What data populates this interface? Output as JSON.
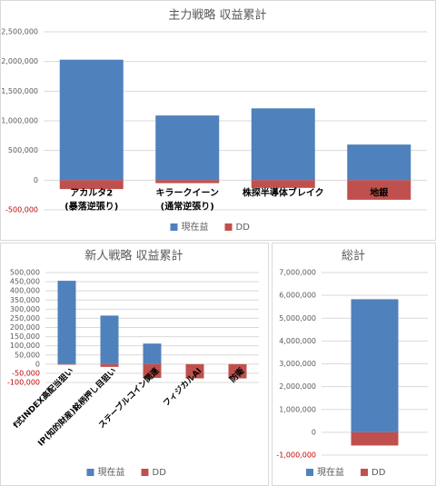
{
  "chart_data": [
    {
      "type": "bar",
      "title": "主力戦略 収益累計",
      "categories": [
        [
          "アカルタ2",
          "(暴落逆張り)"
        ],
        [
          "キラークイーン",
          "(通常逆張り)"
        ],
        [
          "株探半導体ブレイク"
        ],
        [
          "地銀"
        ]
      ],
      "series": [
        {
          "name": "現在益",
          "color": "#4f81bd",
          "values": [
            2030000,
            1090000,
            1210000,
            600000
          ]
        },
        {
          "name": "DD",
          "color": "#c0504d",
          "values": [
            -150000,
            -50000,
            -130000,
            -330000
          ]
        }
      ],
      "ylim": [
        -500000,
        2500000
      ],
      "yticks": [
        {
          "value": -500000,
          "label": "-500,000"
        },
        0,
        {
          "value": 500000,
          "label": "500,000"
        },
        {
          "value": 1000000,
          "label": "1,000,000"
        },
        {
          "value": 1500000,
          "label": "1,500,000"
        },
        {
          "value": 2000000,
          "label": "2,000,000"
        },
        {
          "value": 2500000,
          "label": "2,500,000"
        }
      ],
      "grid": true,
      "legend": "bottom",
      "negative_tick_color": "#c00000"
    },
    {
      "type": "bar",
      "title": "新人戦略 収益累計",
      "categories": [
        "f式INDEX高配当狙い",
        "IP(知的財産)銘柄押し目狙い",
        "ステーブルコイン関連",
        "フィジカルAI",
        "防衛"
      ],
      "series": [
        {
          "name": "現在益",
          "color": "#4f81bd",
          "values": [
            455000,
            265000,
            112000,
            0,
            0
          ]
        },
        {
          "name": "DD",
          "color": "#c0504d",
          "values": [
            -3000,
            -15000,
            -75000,
            -78000,
            -78000
          ]
        }
      ],
      "ylim": [
        -100000,
        500000
      ],
      "yticks": [
        {
          "value": -100000,
          "label": "-100,000"
        },
        {
          "value": -50000,
          "label": "-50,000"
        },
        0,
        {
          "value": 50000,
          "label": "50,000"
        },
        {
          "value": 100000,
          "label": "100,000"
        },
        {
          "value": 150000,
          "label": "150,000"
        },
        {
          "value": 200000,
          "label": "200,000"
        },
        {
          "value": 250000,
          "label": "250,000"
        },
        {
          "value": 300000,
          "label": "300,000"
        },
        {
          "value": 350000,
          "label": "350,000"
        },
        {
          "value": 400000,
          "label": "400,000"
        },
        {
          "value": 450000,
          "label": "450,000"
        },
        {
          "value": 500000,
          "label": "500,000"
        }
      ],
      "grid": true,
      "legend": "bottom",
      "negative_tick_color": "#c00000",
      "rotated_labels": true
    },
    {
      "type": "bar",
      "title": "総計",
      "categories": [
        null
      ],
      "series": [
        {
          "name": "現在益",
          "color": "#4f81bd",
          "values": [
            5830000
          ]
        },
        {
          "name": "DD",
          "color": "#c0504d",
          "values": [
            -580000
          ]
        }
      ],
      "ylim": [
        -1000000,
        7000000
      ],
      "yticks": [
        {
          "value": -1000000,
          "label": "-1,000,000"
        },
        0,
        {
          "value": 1000000,
          "label": "1,000,000"
        },
        {
          "value": 2000000,
          "label": "2,000,000"
        },
        {
          "value": 3000000,
          "label": "3,000,000"
        },
        {
          "value": 4000000,
          "label": "4,000,000"
        },
        {
          "value": 5000000,
          "label": "5,000,000"
        },
        {
          "value": 6000000,
          "label": "6,000,000"
        },
        {
          "value": 7000000,
          "label": "7,000,000"
        }
      ],
      "grid": true,
      "legend": "bottom",
      "negative_tick_color": "#c00000"
    }
  ]
}
